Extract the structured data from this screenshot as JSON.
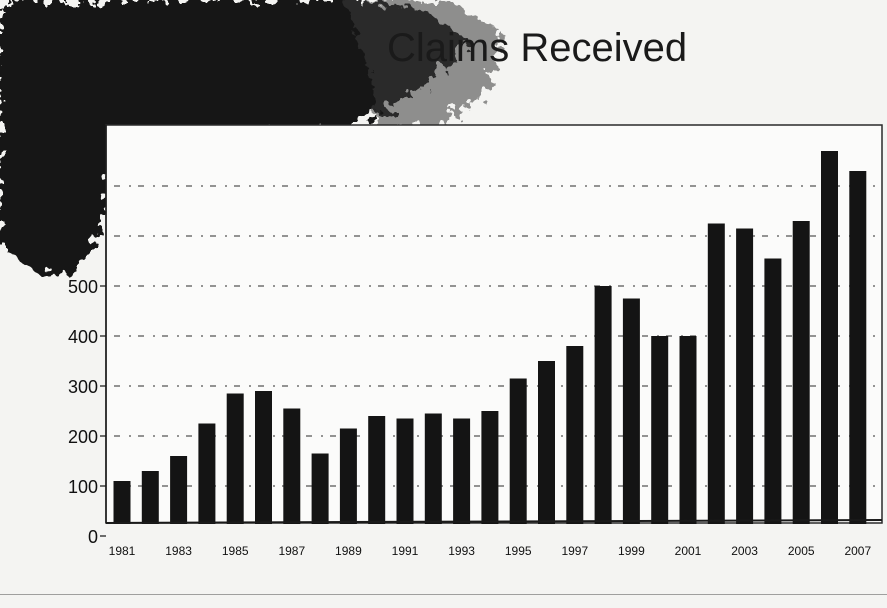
{
  "chart_data": {
    "type": "bar",
    "title": "Claims Received",
    "xlabel": "",
    "ylabel": "",
    "ylim": [
      0,
      800
    ],
    "yticks": [
      0,
      100,
      200,
      300,
      400,
      500
    ],
    "grid": true,
    "categories": [
      "1981",
      "1982",
      "1983",
      "1984",
      "1985",
      "1986",
      "1987",
      "1988",
      "1989",
      "1990",
      "1991",
      "1992",
      "1993",
      "1994",
      "1995",
      "1996",
      "1997",
      "1998",
      "1999",
      "2000",
      "2001",
      "2002",
      "2003",
      "2004",
      "2005",
      "2006",
      "2007"
    ],
    "x_tick_labels": [
      "1981",
      "1983",
      "1985",
      "1987",
      "1989",
      "1991",
      "1993",
      "1995",
      "1997",
      "1999",
      "2001",
      "2003",
      "2005",
      "2007"
    ],
    "values": [
      110,
      130,
      160,
      225,
      285,
      290,
      255,
      165,
      215,
      240,
      235,
      245,
      235,
      250,
      315,
      350,
      380,
      500,
      475,
      400,
      400,
      625,
      615,
      555,
      630,
      770,
      730
    ],
    "bar_color": "#141414"
  }
}
